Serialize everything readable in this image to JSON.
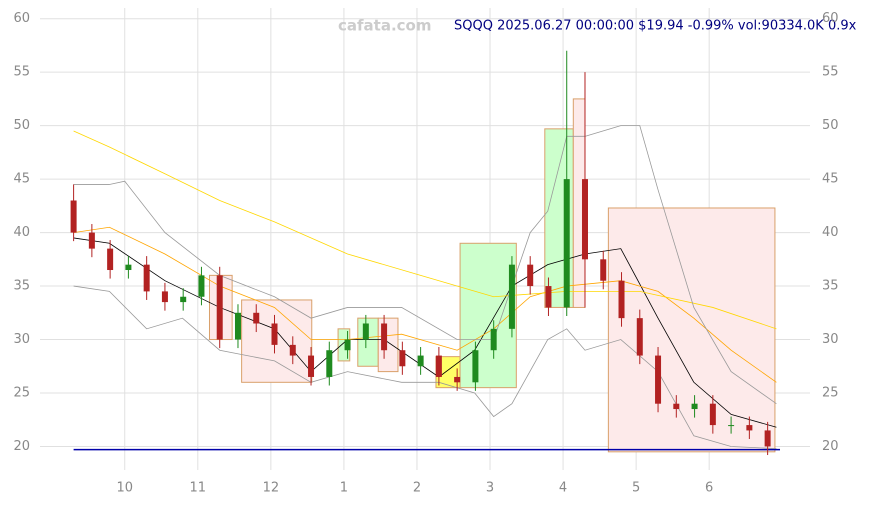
{
  "chart_data": {
    "type": "candlestick",
    "title": "SQQQ 2025.06.27 00:00:00 $19.94 -0.99% vol:90334.0K 0.9x",
    "watermark": "cafata.com",
    "xlim": [
      -1.16,
      9.38
    ],
    "ylim": [
      17.8,
      61
    ],
    "xticks": [
      {
        "value": 0,
        "label": "10"
      },
      {
        "value": 1,
        "label": "11"
      },
      {
        "value": 2,
        "label": "12"
      },
      {
        "value": 3,
        "label": "1"
      },
      {
        "value": 4,
        "label": "2"
      },
      {
        "value": 5,
        "label": "3"
      },
      {
        "value": 6,
        "label": "4"
      },
      {
        "value": 7,
        "label": "5"
      },
      {
        "value": 8,
        "label": "6"
      }
    ],
    "yticks": [
      20,
      25,
      30,
      35,
      40,
      45,
      50,
      55,
      60
    ],
    "grid": true,
    "up_color": "#1f8a1f",
    "down_color": "#b22222",
    "x": [
      -0.7,
      -0.45,
      -0.2,
      0.05,
      0.3,
      0.55,
      0.8,
      1.05,
      1.3,
      1.55,
      1.8,
      2.05,
      2.3,
      2.55,
      2.8,
      3.05,
      3.3,
      3.55,
      3.8,
      4.05,
      4.3,
      4.55,
      4.8,
      5.05,
      5.3,
      5.55,
      5.8,
      6.05,
      6.3,
      6.55,
      6.8,
      7.05,
      7.3,
      7.55,
      7.8,
      8.05,
      8.3,
      8.55,
      8.8
    ],
    "open": [
      43,
      40,
      38.5,
      36.5,
      37,
      34.5,
      33.5,
      34,
      36,
      30,
      32.5,
      31.5,
      29.5,
      28.5,
      26.5,
      29,
      30,
      31.5,
      29,
      27.5,
      28.5,
      26.5,
      26,
      29,
      31,
      37,
      35,
      33,
      45,
      37.5,
      35.5,
      32,
      28.5,
      24,
      23.5,
      24,
      22,
      22,
      21.5
    ],
    "high": [
      44.5,
      40.8,
      39.3,
      37.8,
      37.8,
      35.3,
      34.8,
      36.8,
      36.8,
      33.3,
      33.3,
      32.3,
      30.3,
      29.3,
      29.8,
      30.8,
      32.3,
      32.3,
      29.8,
      29.3,
      29.3,
      27.3,
      29.8,
      31.8,
      37.8,
      37.8,
      35.8,
      57,
      55,
      38.3,
      36.3,
      32.8,
      29.3,
      24.8,
      24.8,
      24.8,
      22.8,
      22.8,
      22.3
    ],
    "low": [
      39.2,
      37.7,
      35.7,
      35.7,
      33.7,
      32.7,
      32.7,
      33.2,
      29.2,
      29.2,
      30.7,
      28.7,
      27.7,
      25.7,
      25.7,
      28.2,
      29.2,
      28.2,
      26.7,
      26.7,
      25.7,
      25.2,
      25.2,
      28.2,
      30.2,
      34.2,
      32.2,
      32.2,
      33,
      34.7,
      31.2,
      27.7,
      23.2,
      22.7,
      22.7,
      21.2,
      21.2,
      20.7,
      19.2
    ],
    "close": [
      40,
      38.5,
      36.5,
      37,
      34.5,
      33.5,
      34,
      36,
      30,
      32.5,
      31.5,
      29.5,
      28.5,
      26.5,
      29,
      30,
      31.5,
      29,
      27.5,
      28.5,
      26.5,
      26,
      29,
      31,
      37,
      35,
      33,
      45,
      37.5,
      35.5,
      32,
      28.5,
      24,
      23.5,
      24,
      22,
      22,
      21.5,
      20
    ],
    "zones": [
      {
        "x": [
          1.16,
          1.47
        ],
        "y": [
          30,
          36
        ],
        "color": "#fdeaea"
      },
      {
        "x": [
          1.6,
          2.56
        ],
        "y": [
          26,
          33.7
        ],
        "color": "#fdeaea"
      },
      {
        "x": [
          2.92,
          3.08
        ],
        "y": [
          28,
          31
        ],
        "color": "#ccffcc"
      },
      {
        "x": [
          3.19,
          3.47
        ],
        "y": [
          27.5,
          32
        ],
        "color": "#ccffcc"
      },
      {
        "x": [
          3.47,
          3.74
        ],
        "y": [
          27,
          32
        ],
        "color": "#fdeaea"
      },
      {
        "x": [
          4.26,
          4.59
        ],
        "y": [
          25.5,
          28.4
        ],
        "color": "#ffff66"
      },
      {
        "x": [
          4.59,
          5.36
        ],
        "y": [
          25.5,
          39
        ],
        "color": "#ccffcc"
      },
      {
        "x": [
          5.75,
          6.14
        ],
        "y": [
          33,
          49.7
        ],
        "color": "#ccffcc"
      },
      {
        "x": [
          6.14,
          6.3
        ],
        "y": [
          33,
          52.5
        ],
        "color": "#fdeaea"
      },
      {
        "x": [
          6.62,
          8.9
        ],
        "y": [
          19.5,
          42.3
        ],
        "color": "#fdeaea"
      }
    ],
    "lines": [
      {
        "color": "#000000",
        "x": [
          -0.7,
          -0.21,
          0.55,
          1.3,
          2.05,
          2.55,
          3.05,
          3.55,
          4.3,
          4.79,
          5.3,
          5.79,
          6.3,
          6.79,
          7.3,
          7.79,
          8.3,
          8.92
        ],
        "values": [
          39.5,
          39,
          35.5,
          33,
          31,
          27,
          30,
          30,
          26.5,
          29,
          35,
          37,
          38,
          38.5,
          32,
          26,
          23,
          21.8
        ]
      },
      {
        "color": "#ffa500",
        "x": [
          -0.7,
          -0.21,
          0.55,
          1.3,
          2.05,
          2.55,
          3.05,
          3.79,
          4.55,
          5.05,
          5.55,
          6.05,
          6.79,
          7.3,
          7.79,
          8.3,
          8.92
        ],
        "values": [
          40,
          40.5,
          38,
          35,
          33,
          30,
          30,
          30.5,
          29,
          31,
          34,
          35,
          35.5,
          34.5,
          32,
          29,
          26
        ]
      },
      {
        "color": "#ffd700",
        "x": [
          -0.7,
          -0.21,
          0.55,
          1.3,
          2.05,
          3.05,
          4.05,
          5.05,
          6.05,
          7.05,
          8.05,
          8.92
        ],
        "values": [
          49.5,
          48,
          45.5,
          43,
          41,
          38,
          36,
          34,
          34.5,
          34.5,
          33,
          31
        ]
      },
      {
        "color": "#999999",
        "x": [
          -0.7,
          -0.21,
          0,
          0.55,
          1.3,
          2.05,
          2.55,
          3.05,
          3.79,
          4.55,
          5.05,
          5.3,
          5.55,
          5.79,
          6.05,
          6.3,
          6.79,
          7.05,
          7.3,
          7.79,
          8.3,
          8.92
        ],
        "values": [
          44.5,
          44.5,
          44.8,
          40,
          36,
          34,
          32,
          33,
          33,
          30,
          30,
          35,
          40,
          42,
          49,
          49,
          50,
          50,
          44,
          33,
          27,
          24
        ]
      },
      {
        "color": "#999999",
        "x": [
          -0.7,
          -0.21,
          0.3,
          0.79,
          1.3,
          2.05,
          2.55,
          3.05,
          3.79,
          4.3,
          4.79,
          5.05,
          5.3,
          5.79,
          6.05,
          6.3,
          6.79,
          7.3,
          7.79,
          8.3,
          8.92
        ],
        "values": [
          35,
          34.5,
          31,
          32,
          29,
          28,
          26,
          27,
          26,
          26,
          25,
          22.8,
          24,
          30,
          31,
          29,
          30,
          27,
          21,
          20,
          19.8
        ]
      }
    ],
    "hline": 19.7,
    "hline_color": "#0000aa"
  }
}
